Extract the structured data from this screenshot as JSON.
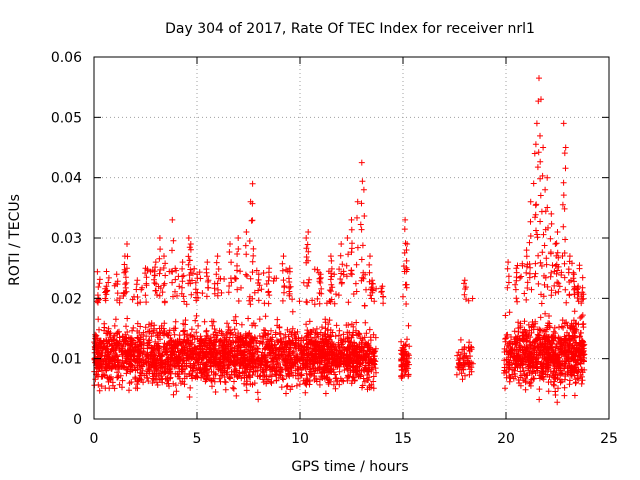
{
  "chart_data": {
    "type": "scatter",
    "title": "Day 304 of 2017, Rate Of TEC Index for receiver nrl1",
    "xlabel": "GPS time / hours",
    "ylabel": "ROTI / TECUs",
    "xlim": [
      0,
      25
    ],
    "ylim": [
      0,
      0.06
    ],
    "xticks": [
      0,
      5,
      10,
      15,
      20,
      25
    ],
    "xtick_labels": [
      "0",
      "5",
      "10",
      "15",
      "20",
      "25"
    ],
    "yticks": [
      0,
      0.01,
      0.02,
      0.03,
      0.04,
      0.05,
      0.06
    ],
    "ytick_labels": [
      "0",
      "0.01",
      "0.02",
      "0.03",
      "0.04",
      "0.05",
      "0.06"
    ],
    "grid": true,
    "marker": "+",
    "color": "#ff0000",
    "series": [
      {
        "name": "ROTI",
        "segments": [
          {
            "x0": 0.0,
            "x1": 13.0,
            "n": 2600,
            "ymin": 0.004,
            "ymax": 0.019,
            "mean": 0.0105
          },
          {
            "x0": 13.0,
            "x1": 13.7,
            "n": 120,
            "ymin": 0.004,
            "ymax": 0.018,
            "mean": 0.01
          },
          {
            "x0": 14.9,
            "x1": 15.3,
            "n": 70,
            "ymin": 0.005,
            "ymax": 0.015,
            "mean": 0.0095
          },
          {
            "x0": 17.6,
            "x1": 18.4,
            "n": 60,
            "ymin": 0.006,
            "ymax": 0.016,
            "mean": 0.01
          },
          {
            "x0": 19.9,
            "x1": 20.4,
            "n": 60,
            "ymin": 0.005,
            "ymax": 0.017,
            "mean": 0.01
          },
          {
            "x0": 20.4,
            "x1": 23.8,
            "n": 800,
            "ymin": 0.003,
            "ymax": 0.02,
            "mean": 0.011
          }
        ],
        "peaks": [
          {
            "x": 0.2,
            "y": 0.02
          },
          {
            "x": 0.6,
            "y": 0.022
          },
          {
            "x": 1.1,
            "y": 0.024
          },
          {
            "x": 1.5,
            "y": 0.027
          },
          {
            "x": 1.6,
            "y": 0.029
          },
          {
            "x": 2.1,
            "y": 0.023
          },
          {
            "x": 2.5,
            "y": 0.025
          },
          {
            "x": 3.0,
            "y": 0.026
          },
          {
            "x": 3.2,
            "y": 0.03
          },
          {
            "x": 3.4,
            "y": 0.027
          },
          {
            "x": 3.8,
            "y": 0.033
          },
          {
            "x": 4.3,
            "y": 0.026
          },
          {
            "x": 4.6,
            "y": 0.03
          },
          {
            "x": 4.7,
            "y": 0.029
          },
          {
            "x": 5.0,
            "y": 0.024
          },
          {
            "x": 5.5,
            "y": 0.026
          },
          {
            "x": 6.0,
            "y": 0.027
          },
          {
            "x": 6.6,
            "y": 0.029
          },
          {
            "x": 7.0,
            "y": 0.03
          },
          {
            "x": 7.4,
            "y": 0.031
          },
          {
            "x": 7.6,
            "y": 0.036
          },
          {
            "x": 7.7,
            "y": 0.039
          },
          {
            "x": 8.0,
            "y": 0.024
          },
          {
            "x": 8.5,
            "y": 0.025
          },
          {
            "x": 9.2,
            "y": 0.027
          },
          {
            "x": 9.5,
            "y": 0.025
          },
          {
            "x": 10.3,
            "y": 0.03
          },
          {
            "x": 10.4,
            "y": 0.031
          },
          {
            "x": 11.0,
            "y": 0.024
          },
          {
            "x": 11.5,
            "y": 0.027
          },
          {
            "x": 12.0,
            "y": 0.029
          },
          {
            "x": 12.3,
            "y": 0.03
          },
          {
            "x": 12.5,
            "y": 0.033
          },
          {
            "x": 12.8,
            "y": 0.036
          },
          {
            "x": 13.0,
            "y": 0.0425
          },
          {
            "x": 13.1,
            "y": 0.038
          },
          {
            "x": 13.4,
            "y": 0.027
          },
          {
            "x": 13.5,
            "y": 0.023
          },
          {
            "x": 14.0,
            "y": 0.022
          },
          {
            "x": 15.1,
            "y": 0.033
          },
          {
            "x": 15.2,
            "y": 0.029
          },
          {
            "x": 18.0,
            "y": 0.023
          },
          {
            "x": 20.1,
            "y": 0.026
          },
          {
            "x": 20.5,
            "y": 0.025
          },
          {
            "x": 21.0,
            "y": 0.028
          },
          {
            "x": 21.2,
            "y": 0.036
          },
          {
            "x": 21.4,
            "y": 0.044
          },
          {
            "x": 21.5,
            "y": 0.049
          },
          {
            "x": 21.6,
            "y": 0.0565
          },
          {
            "x": 21.7,
            "y": 0.053
          },
          {
            "x": 21.8,
            "y": 0.045
          },
          {
            "x": 21.9,
            "y": 0.038
          },
          {
            "x": 22.0,
            "y": 0.04
          },
          {
            "x": 22.2,
            "y": 0.034
          },
          {
            "x": 22.4,
            "y": 0.029
          },
          {
            "x": 22.5,
            "y": 0.031
          },
          {
            "x": 22.8,
            "y": 0.049
          },
          {
            "x": 22.9,
            "y": 0.045
          },
          {
            "x": 23.1,
            "y": 0.027
          },
          {
            "x": 23.3,
            "y": 0.024
          },
          {
            "x": 23.5,
            "y": 0.022
          },
          {
            "x": 23.7,
            "y": 0.021
          }
        ]
      }
    ]
  }
}
